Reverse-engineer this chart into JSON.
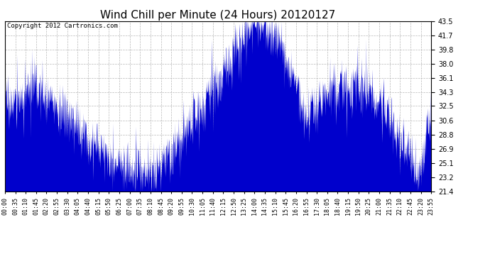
{
  "title": "Wind Chill per Minute (24 Hours) 20120127",
  "copyright": "Copyright 2012 Cartronics.com",
  "y_ticks": [
    21.4,
    23.2,
    25.1,
    26.9,
    28.8,
    30.6,
    32.5,
    34.3,
    36.1,
    38.0,
    39.8,
    41.7,
    43.5
  ],
  "ylim": [
    21.4,
    43.5
  ],
  "line_color": "#0000cc",
  "bg_color": "#ffffff",
  "grid_color": "#b0b0b0",
  "title_fontsize": 11,
  "copyright_fontsize": 6.5,
  "x_tick_fontsize": 6,
  "y_tick_fontsize": 7,
  "x_tick_labels": [
    "00:00",
    "00:35",
    "01:10",
    "01:45",
    "02:20",
    "02:55",
    "03:30",
    "04:05",
    "04:40",
    "05:15",
    "05:50",
    "06:25",
    "07:00",
    "07:35",
    "08:10",
    "08:45",
    "09:20",
    "09:55",
    "10:30",
    "11:05",
    "11:40",
    "12:15",
    "12:50",
    "13:25",
    "14:00",
    "14:35",
    "15:10",
    "15:45",
    "16:20",
    "16:55",
    "17:30",
    "18:05",
    "18:40",
    "19:15",
    "19:50",
    "20:25",
    "21:00",
    "21:35",
    "22:10",
    "22:45",
    "23:20",
    "23:55"
  ],
  "base_segments": [
    {
      "t0": 0,
      "t1": 60,
      "v0": 32.5,
      "v1": 33.5
    },
    {
      "t0": 60,
      "t1": 100,
      "v0": 33.5,
      "v1": 35.0
    },
    {
      "t0": 100,
      "t1": 390,
      "v0": 35.0,
      "v1": 24.5
    },
    {
      "t0": 390,
      "t1": 450,
      "v0": 24.5,
      "v1": 24.0
    },
    {
      "t0": 450,
      "t1": 490,
      "v0": 24.0,
      "v1": 23.5
    },
    {
      "t0": 490,
      "t1": 560,
      "v0": 23.5,
      "v1": 26.0
    },
    {
      "t0": 560,
      "t1": 610,
      "v0": 26.0,
      "v1": 29.0
    },
    {
      "t0": 610,
      "t1": 660,
      "v0": 29.0,
      "v1": 32.0
    },
    {
      "t0": 660,
      "t1": 760,
      "v0": 32.0,
      "v1": 38.5
    },
    {
      "t0": 760,
      "t1": 820,
      "v0": 38.5,
      "v1": 42.5
    },
    {
      "t0": 820,
      "t1": 845,
      "v0": 42.5,
      "v1": 43.5
    },
    {
      "t0": 845,
      "t1": 870,
      "v0": 43.5,
      "v1": 43.2
    },
    {
      "t0": 870,
      "t1": 910,
      "v0": 43.2,
      "v1": 41.5
    },
    {
      "t0": 910,
      "t1": 950,
      "v0": 41.5,
      "v1": 38.5
    },
    {
      "t0": 950,
      "t1": 980,
      "v0": 38.5,
      "v1": 35.5
    },
    {
      "t0": 980,
      "t1": 1000,
      "v0": 35.5,
      "v1": 32.5
    },
    {
      "t0": 1000,
      "t1": 1020,
      "v0": 32.5,
      "v1": 31.0
    },
    {
      "t0": 1020,
      "t1": 1080,
      "v0": 31.0,
      "v1": 34.0
    },
    {
      "t0": 1080,
      "t1": 1140,
      "v0": 34.0,
      "v1": 35.0
    },
    {
      "t0": 1140,
      "t1": 1200,
      "v0": 35.0,
      "v1": 35.0
    },
    {
      "t0": 1200,
      "t1": 1260,
      "v0": 35.0,
      "v1": 33.0
    },
    {
      "t0": 1260,
      "t1": 1320,
      "v0": 33.0,
      "v1": 29.0
    },
    {
      "t0": 1320,
      "t1": 1370,
      "v0": 29.0,
      "v1": 25.5
    },
    {
      "t0": 1370,
      "t1": 1400,
      "v0": 25.5,
      "v1": 23.5
    },
    {
      "t0": 1400,
      "t1": 1440,
      "v0": 23.5,
      "v1": 32.5
    }
  ],
  "noise_scale": 1.8,
  "noise_seed": 17
}
